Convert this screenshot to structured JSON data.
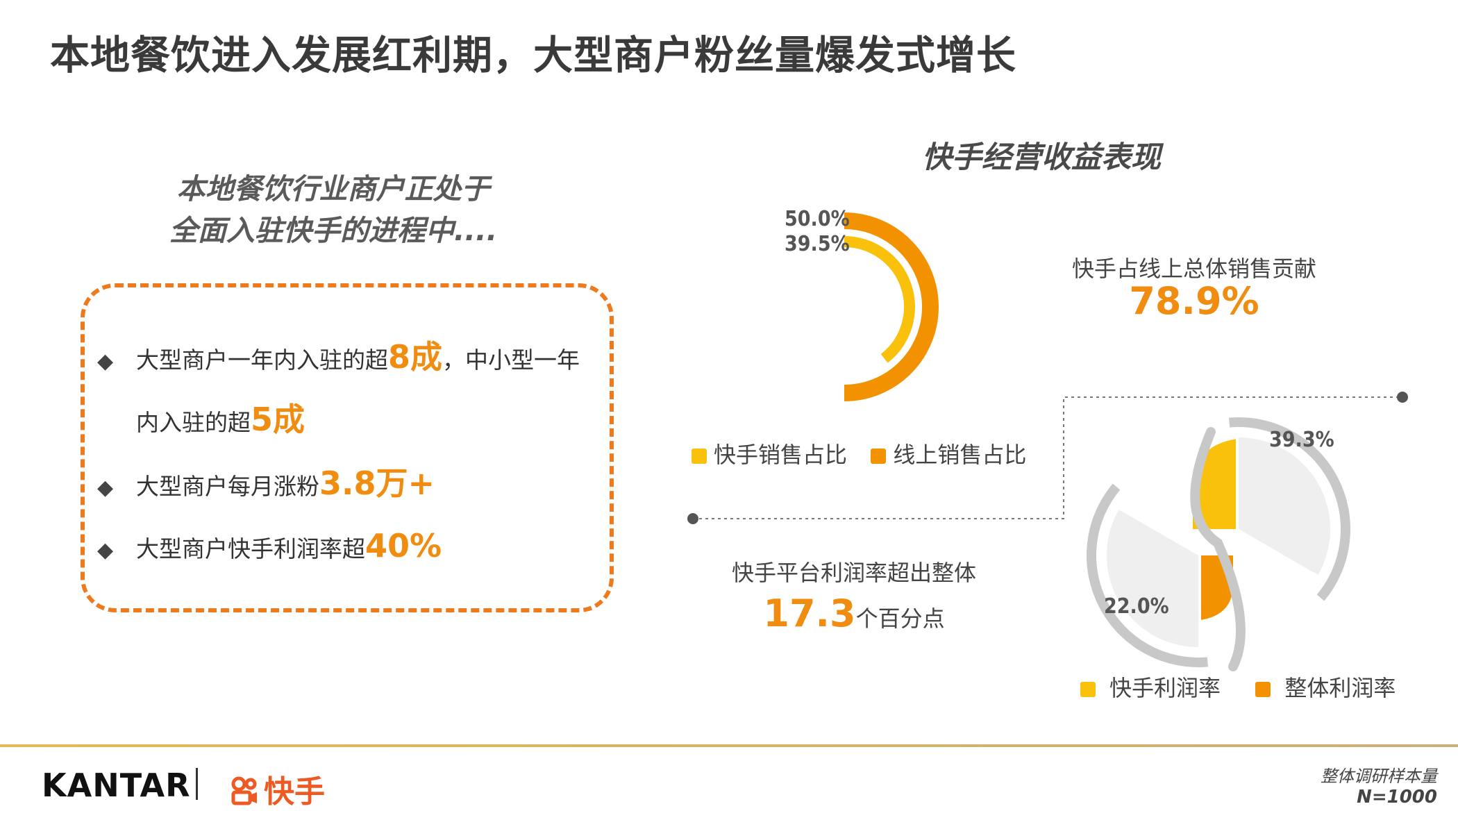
{
  "title": "本地餐饮进入发展红利期，大型商户粉丝量爆发式增长",
  "subtitle": {
    "line1": "本地餐饮行业商户正处于",
    "line2": "全面入驻快手的进程中...."
  },
  "bullets": [
    {
      "pre": "大型商户一年内入驻的超",
      "hl": "8成",
      "post": "，中小型一年"
    },
    {
      "pre": "内入驻的超",
      "hl": "5成",
      "post": ""
    },
    {
      "pre": "大型商户每月涨粉",
      "hl": "3.8万+",
      "post": ""
    },
    {
      "pre": "大型商户快手利润率超",
      "hl": "40%",
      "post": ""
    }
  ],
  "bullet_marker": "◆",
  "chart_title": "快手经营收益表现",
  "chart_data": [
    {
      "type": "donut",
      "series": [
        {
          "name": "快手销售占比",
          "value": 39.5,
          "label": "39.5%",
          "color": "#f9c10c"
        },
        {
          "name": "线上销售占比",
          "value": 50.0,
          "label": "50.0%",
          "color": "#f39200"
        }
      ]
    },
    {
      "type": "pie",
      "series": [
        {
          "name": "快手利润率",
          "value": 39.3,
          "label": "39.3%",
          "color": "#f9c10c"
        },
        {
          "name": "整体利润率",
          "value": 22.0,
          "label": "22.0%",
          "color": "#f39200"
        }
      ]
    }
  ],
  "stat1": {
    "label": "快手占线上总体销售贡献",
    "value": "78.9%"
  },
  "stat2": {
    "label": "快手平台利润率超出整体",
    "value": "17.3",
    "unit": "个百分点"
  },
  "footer": {
    "brand1": "KANTAR",
    "brand2": "快手",
    "sample_label": "整体调研样本量",
    "sample_value": "N=1000"
  },
  "colors": {
    "accent": "#f08c10",
    "yellow": "#f9c10c",
    "orange": "#f39200",
    "gray": "#bdbdbd"
  }
}
